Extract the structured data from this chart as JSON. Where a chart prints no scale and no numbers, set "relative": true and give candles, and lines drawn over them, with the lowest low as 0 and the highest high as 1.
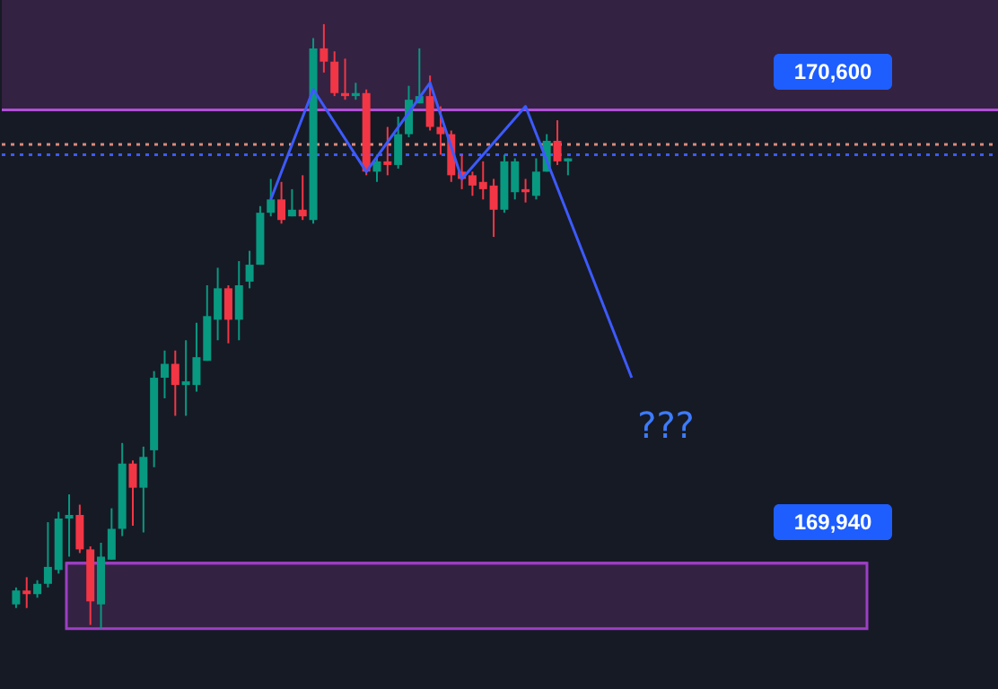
{
  "chart_data": {
    "type": "candlestick",
    "relative": true,
    "categories": [
      null,
      null,
      null,
      null,
      null,
      null,
      null,
      null,
      null,
      null,
      null,
      null,
      null,
      null,
      null,
      null,
      null,
      null,
      null,
      null,
      null,
      null,
      null,
      null,
      null,
      null,
      null,
      null,
      null,
      null,
      null,
      null,
      null,
      null,
      null,
      null,
      null,
      null,
      null,
      null,
      null,
      null,
      null,
      null,
      null,
      null,
      null,
      null,
      null,
      null,
      null,
      null,
      null,
      null,
      null,
      null,
      null,
      null,
      null,
      null,
      null,
      null,
      null,
      null,
      null,
      null,
      null,
      null,
      null,
      null,
      null,
      null,
      null,
      null,
      null,
      null,
      null,
      null,
      null,
      null,
      null,
      null,
      null,
      null,
      null,
      null,
      null,
      null,
      null,
      null,
      null,
      null
    ],
    "ohlc": [
      [
        0.04,
        0.068,
        0.034,
        0.063
      ],
      [
        0.063,
        0.085,
        0.034,
        0.057
      ],
      [
        0.057,
        0.08,
        0.051,
        0.074
      ],
      [
        0.074,
        0.176,
        0.068,
        0.102
      ],
      [
        0.097,
        0.193,
        0.091,
        0.182
      ],
      [
        0.182,
        0.222,
        0.119,
        0.188
      ],
      [
        0.188,
        0.205,
        0.125,
        0.131
      ],
      [
        0.131,
        0.136,
        0.006,
        0.045
      ],
      [
        0.04,
        0.142,
        0,
        0.119
      ],
      [
        0.114,
        0.199,
        0.114,
        0.165
      ],
      [
        0.165,
        0.307,
        0.153,
        0.273
      ],
      [
        0.273,
        0.278,
        0.17,
        0.233
      ],
      [
        0.233,
        0.301,
        0.159,
        0.284
      ],
      [
        0.295,
        0.426,
        0.267,
        0.415
      ],
      [
        0.415,
        0.46,
        0.381,
        0.438
      ],
      [
        0.438,
        0.46,
        0.352,
        0.403
      ],
      [
        0.403,
        0.477,
        0.352,
        0.409
      ],
      [
        0.403,
        0.506,
        0.392,
        0.449
      ],
      [
        0.443,
        0.568,
        0.443,
        0.517
      ],
      [
        0.511,
        0.597,
        0.477,
        0.563
      ],
      [
        0.563,
        0.568,
        0.472,
        0.511
      ],
      [
        0.511,
        0.608,
        0.477,
        0.568
      ],
      [
        0.574,
        0.625,
        0.563,
        0.602
      ],
      [
        0.602,
        0.699,
        0.602,
        0.688
      ],
      [
        0.688,
        0.744,
        0.682,
        0.71
      ],
      [
        0.71,
        0.739,
        0.67,
        0.676
      ],
      [
        0.682,
        0.727,
        0.682,
        0.693
      ],
      [
        0.693,
        0.75,
        0.676,
        0.682
      ],
      [
        0.676,
        0.977,
        0.67,
        0.96
      ],
      [
        0.96,
        1,
        0.92,
        0.938
      ],
      [
        0.938,
        0.955,
        0.881,
        0.886
      ],
      [
        0.886,
        0.943,
        0.875,
        0.881
      ],
      [
        0.881,
        0.903,
        0.875,
        0.886
      ],
      [
        0.886,
        0.892,
        0.75,
        0.756
      ],
      [
        0.756,
        0.784,
        0.739,
        0.773
      ],
      [
        0.773,
        0.83,
        0.75,
        0.767
      ],
      [
        0.767,
        0.847,
        0.761,
        0.818
      ],
      [
        0.818,
        0.898,
        0.813,
        0.875
      ],
      [
        0.869,
        0.96,
        0.869,
        0.881
      ],
      [
        0.881,
        0.915,
        0.824,
        0.83
      ],
      [
        0.83,
        0.864,
        0.784,
        0.818
      ],
      [
        0.818,
        0.824,
        0.739,
        0.75
      ],
      [
        0.756,
        0.784,
        0.727,
        0.744
      ],
      [
        0.75,
        0.756,
        0.716,
        0.733
      ],
      [
        0.739,
        0.773,
        0.71,
        0.727
      ],
      [
        0.733,
        0.744,
        0.648,
        0.693
      ],
      [
        0.693,
        0.784,
        0.688,
        0.773
      ],
      [
        0.722,
        0.778,
        0.71,
        0.773
      ],
      [
        0.727,
        0.744,
        0.705,
        0.722
      ],
      [
        0.716,
        0.778,
        0.71,
        0.756
      ],
      [
        0.756,
        0.818,
        0.756,
        0.807
      ],
      [
        0.807,
        0.841,
        0.767,
        0.773
      ],
      [
        0.773,
        0.778,
        0.75,
        0.778
      ],
      null,
      null,
      null,
      null,
      null,
      null,
      null,
      null,
      null,
      null,
      null,
      null,
      null,
      null,
      null,
      null,
      null,
      null,
      null,
      null,
      null,
      null,
      null,
      null,
      null,
      null,
      null,
      null,
      null,
      null,
      null,
      null,
      null,
      null,
      null,
      null,
      null,
      null,
      null
    ],
    "series": [
      {
        "type": "line",
        "color": "#3d5afe",
        "values": [
          null,
          null,
          null,
          null,
          null,
          null,
          null,
          null,
          null,
          null,
          null,
          null,
          null,
          null,
          null,
          null,
          null,
          null,
          null,
          null,
          null,
          null,
          null,
          null,
          0.71,
          null,
          null,
          null,
          0.892,
          null,
          null,
          null,
          null,
          0.756,
          null,
          null,
          null,
          null,
          null,
          0.903,
          null,
          null,
          0.744,
          null,
          null,
          null,
          null,
          null,
          0.864,
          null,
          null,
          null,
          null,
          null,
          null,
          null,
          null,
          null,
          0.415,
          null,
          null,
          null,
          null,
          null,
          null,
          null,
          null,
          null,
          null,
          null,
          null,
          null,
          null,
          null,
          null,
          null,
          null,
          null,
          null,
          null,
          null,
          null,
          null,
          null,
          null,
          null,
          null,
          null,
          null,
          null,
          null,
          null
        ]
      }
    ],
    "tick_labels": false,
    "ref_lines": [
      {
        "axis": "y",
        "value": 0.858,
        "color": "#b04fd6"
      },
      {
        "axis": "y",
        "value": 0.108,
        "color": "#9c3fc4"
      },
      {
        "axis": "y",
        "value": 0.801,
        "color": "#d98a7a",
        "line_style": "dotted"
      },
      {
        "axis": "y",
        "value": 0.784,
        "color": "#3d5afe",
        "line_style": "dotted"
      }
    ],
    "bands": [
      {
        "axis": "y",
        "from": 0.858,
        "to": 1.04,
        "color": "#3a2448"
      },
      {
        "axis": "y",
        "from": 0,
        "to": 0.108,
        "color": "#3a2448"
      }
    ],
    "annotations": [
      "170,600",
      "169,940",
      "???"
    ]
  }
}
